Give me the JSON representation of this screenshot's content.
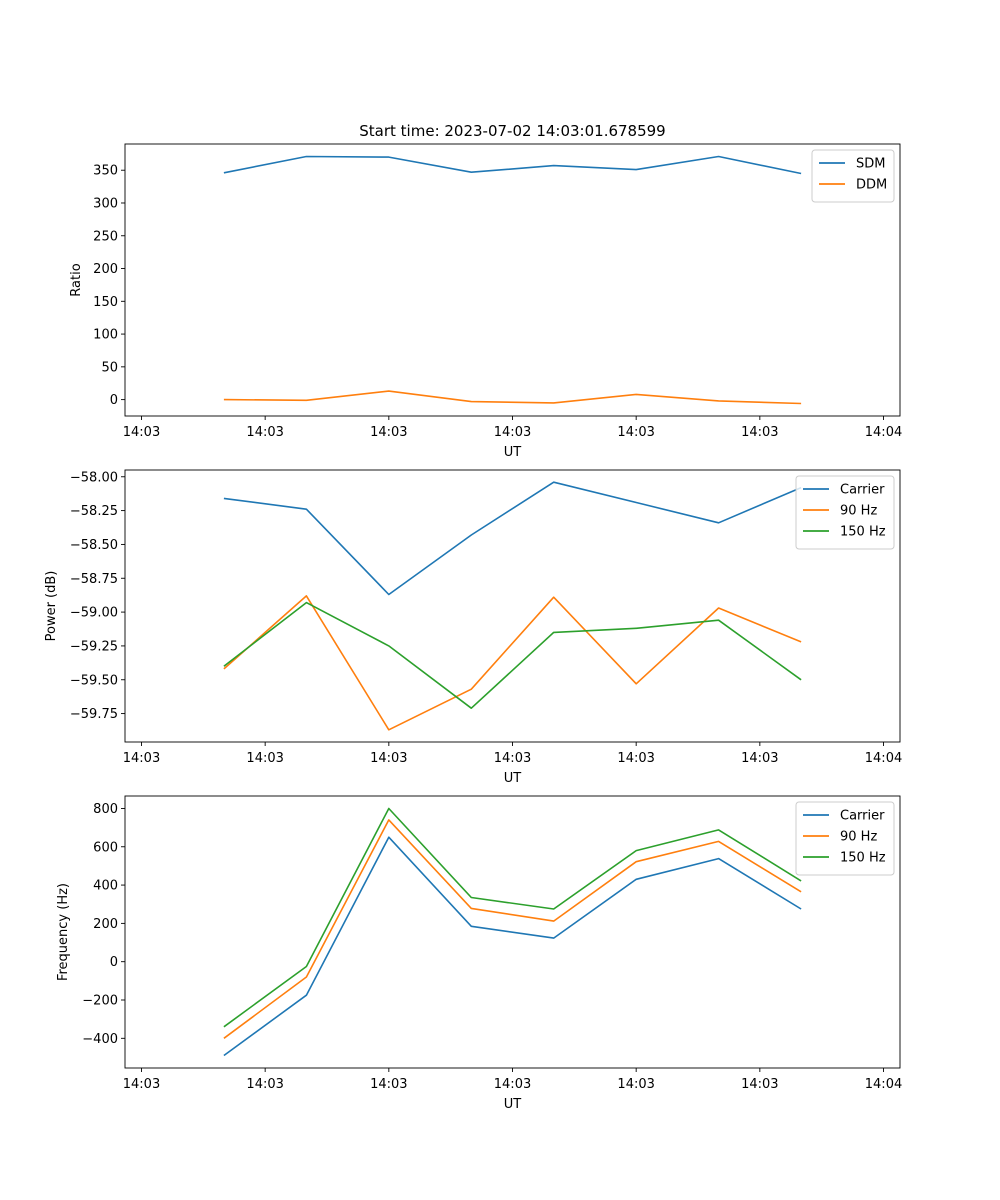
{
  "figure": {
    "title": "Start time: 2023-07-02 14:03:01.678599"
  },
  "chart_data": [
    {
      "type": "line",
      "title": "Start time: 2023-07-02 14:03:01.678599",
      "xlabel": "UT",
      "ylabel": "Ratio",
      "x": [
        1,
        2,
        3,
        4,
        5,
        6,
        7,
        8
      ],
      "xlim": [
        -0.2,
        9.2
      ],
      "x_ticks": [
        0,
        1.5,
        3,
        4.5,
        6,
        7.5,
        9
      ],
      "x_tick_labels": [
        "14:03",
        "14:03",
        "14:03",
        "14:03",
        "14:03",
        "14:03",
        "14:04"
      ],
      "ylim": [
        -25,
        390
      ],
      "y_ticks": [
        0,
        50,
        100,
        150,
        200,
        250,
        300,
        350
      ],
      "y_tick_labels": [
        "0",
        "50",
        "100",
        "150",
        "200",
        "250",
        "300",
        "350"
      ],
      "legend_position": "top-right",
      "series": [
        {
          "name": "SDM",
          "color": "#1f77b4",
          "values": [
            346,
            371,
            370,
            347,
            357,
            351,
            371,
            345
          ]
        },
        {
          "name": "DDM",
          "color": "#ff7f0e",
          "values": [
            0,
            -1,
            13,
            -3,
            -5,
            8,
            -2,
            -6
          ]
        }
      ]
    },
    {
      "type": "line",
      "title": "",
      "xlabel": "UT",
      "ylabel": "Power (dB)",
      "x": [
        1,
        2,
        3,
        4,
        5,
        6,
        7,
        8
      ],
      "xlim": [
        -0.2,
        9.2
      ],
      "x_ticks": [
        0,
        1.5,
        3,
        4.5,
        6,
        7.5,
        9
      ],
      "x_tick_labels": [
        "14:03",
        "14:03",
        "14:03",
        "14:03",
        "14:03",
        "14:03",
        "14:04"
      ],
      "ylim": [
        -59.96,
        -57.95
      ],
      "y_ticks": [
        -59.75,
        -59.5,
        -59.25,
        -59.0,
        -58.75,
        -58.5,
        -58.25,
        -58.0
      ],
      "y_tick_labels": [
        "−59.75",
        "−59.50",
        "−59.25",
        "−59.00",
        "−58.75",
        "−58.50",
        "−58.25",
        "−58.00"
      ],
      "legend_position": "top-right",
      "series": [
        {
          "name": "Carrier",
          "color": "#1f77b4",
          "values": [
            -58.16,
            -58.24,
            -58.87,
            -58.43,
            -58.04,
            -58.19,
            -58.34,
            -58.08
          ]
        },
        {
          "name": "90 Hz",
          "color": "#ff7f0e",
          "values": [
            -59.42,
            -58.88,
            -59.87,
            -59.57,
            -58.89,
            -59.53,
            -58.97,
            -59.22
          ]
        },
        {
          "name": "150 Hz",
          "color": "#2ca02c",
          "values": [
            -59.4,
            -58.93,
            -59.25,
            -59.71,
            -59.15,
            -59.12,
            -59.06,
            -59.5
          ]
        }
      ]
    },
    {
      "type": "line",
      "title": "",
      "xlabel": "UT",
      "ylabel": "Frequency (Hz)",
      "x": [
        1,
        2,
        3,
        4,
        5,
        6,
        7,
        8
      ],
      "xlim": [
        -0.2,
        9.2
      ],
      "x_ticks": [
        0,
        1.5,
        3,
        4.5,
        6,
        7.5,
        9
      ],
      "x_tick_labels": [
        "14:03",
        "14:03",
        "14:03",
        "14:03",
        "14:03",
        "14:03",
        "14:04"
      ],
      "ylim": [
        -555,
        865
      ],
      "y_ticks": [
        -400,
        -200,
        0,
        200,
        400,
        600,
        800
      ],
      "y_tick_labels": [
        "−400",
        "−200",
        "0",
        "200",
        "400",
        "600",
        "800"
      ],
      "legend_position": "top-right",
      "series": [
        {
          "name": "Carrier",
          "color": "#1f77b4",
          "values": [
            -490,
            -175,
            650,
            185,
            123,
            430,
            538,
            275
          ]
        },
        {
          "name": "90 Hz",
          "color": "#ff7f0e",
          "values": [
            -400,
            -80,
            740,
            278,
            212,
            522,
            628,
            365
          ]
        },
        {
          "name": "150 Hz",
          "color": "#2ca02c",
          "values": [
            -340,
            -25,
            800,
            335,
            275,
            580,
            688,
            422
          ]
        }
      ]
    }
  ]
}
